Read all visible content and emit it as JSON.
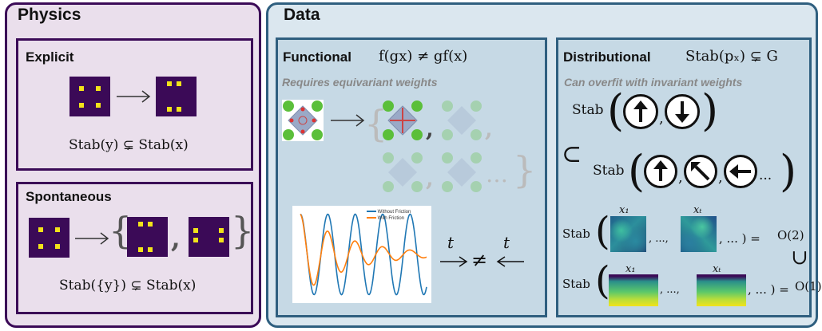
{
  "physics": {
    "title": "Physics",
    "explicit": {
      "title": "Explicit",
      "equation": "Stab(y) ⊊ Stab(x)"
    },
    "spontaneous": {
      "title": "Spontaneous",
      "equation": "Stab({y}) ⊊ Stab(x)"
    }
  },
  "data": {
    "title": "Data",
    "functional": {
      "title": "Functional",
      "equation": "f(gx) ≠ gf(x)",
      "subtitle": "Requires equivariant weights",
      "ellipsis": "…",
      "chart_legend": [
        "Without Friction",
        "With Friction"
      ],
      "time_symbol_left": "t",
      "time_symbol_right": "t",
      "not_equal": "≠"
    },
    "distributional": {
      "title": "Distributional",
      "equation": "Stab(pₓ) ⊊ G",
      "subtitle": "Can overfit with invariant weights",
      "stab": "Stab",
      "subset": "⊂",
      "supset": "∪",
      "ellipsis": "...",
      "comma_ellipsis": ", ...,",
      "comma_dots": ", ... ) =",
      "x1": "x₁",
      "xt": "xₜ",
      "o2": "O(2)",
      "o1": "O(1)"
    }
  },
  "colors": {
    "physics_bg": "#eadfec",
    "physics_border": "#3b0a57",
    "data_bg": "#dbe7ef",
    "data_border": "#2f5f7f",
    "pixel": "#3b0a57",
    "dot": "#f2e31a",
    "blue_line": "#1f77b4",
    "orange_line": "#ff7f0e"
  },
  "chart_data": {
    "type": "line",
    "series": [
      {
        "name": "Without Friction",
        "amplitude": 1.0,
        "damping": 0.0,
        "period": 1.0,
        "x_start": 0,
        "x_end": 4.6
      },
      {
        "name": "With Friction",
        "amplitude": 1.0,
        "damping": 0.55,
        "period": 1.0,
        "x_start": 0,
        "x_end": 4.6
      }
    ],
    "legend": "top-right",
    "grid": false
  }
}
